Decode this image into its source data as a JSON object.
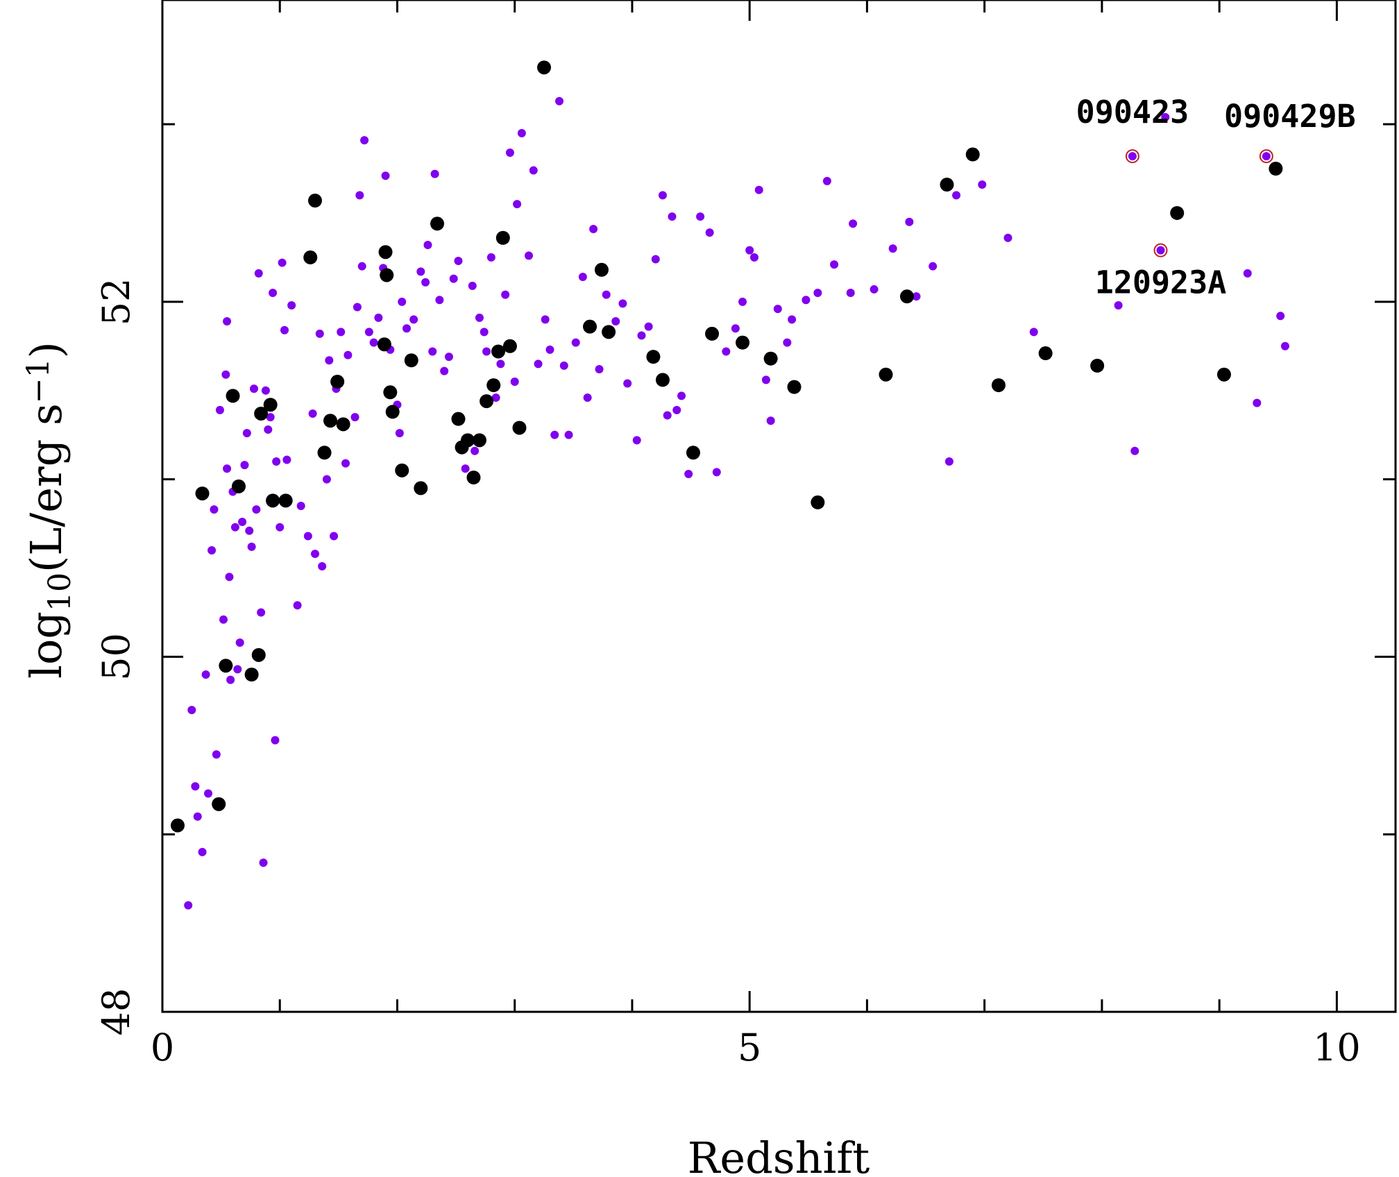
{
  "chart_data": {
    "type": "scatter",
    "title": "",
    "xlabel": "Redshift",
    "ylabel": {
      "prefix": "log",
      "sub": "10",
      "body": "(L/erg s",
      "sup": "−1",
      "close": ")"
    },
    "xlim": [
      0,
      10.5
    ],
    "ylim": [
      48,
      53.7
    ],
    "x_ticks": [
      0,
      5,
      10
    ],
    "y_ticks": [
      48,
      50,
      52
    ],
    "x_minor_step": 1,
    "y_minor_step": 1,
    "grid": false,
    "colors": {
      "purple": "#8000ee",
      "black": "#000000",
      "ring": "#c0202a"
    },
    "series": [
      {
        "marker": "small-dot",
        "color": "#8000ee",
        "points": [
          [
            0.22,
            48.6
          ],
          [
            0.25,
            49.7
          ],
          [
            0.28,
            49.27
          ],
          [
            0.3,
            49.1
          ],
          [
            0.34,
            48.9
          ],
          [
            0.37,
            49.9
          ],
          [
            0.39,
            49.23
          ],
          [
            0.42,
            50.6
          ],
          [
            0.44,
            50.83
          ],
          [
            0.46,
            49.45
          ],
          [
            0.49,
            51.39
          ],
          [
            0.52,
            50.21
          ],
          [
            0.54,
            51.59
          ],
          [
            0.55,
            51.06
          ],
          [
            0.55,
            51.89
          ],
          [
            0.57,
            50.45
          ],
          [
            0.58,
            49.87
          ],
          [
            0.6,
            50.93
          ],
          [
            0.62,
            50.73
          ],
          [
            0.64,
            49.93
          ],
          [
            0.66,
            50.08
          ],
          [
            0.68,
            50.76
          ],
          [
            0.7,
            51.08
          ],
          [
            0.72,
            51.26
          ],
          [
            0.74,
            50.71
          ],
          [
            0.76,
            50.62
          ],
          [
            0.78,
            51.51
          ],
          [
            0.8,
            50.83
          ],
          [
            0.82,
            52.16
          ],
          [
            0.84,
            50.25
          ],
          [
            0.86,
            48.84
          ],
          [
            0.88,
            51.5
          ],
          [
            0.9,
            51.28
          ],
          [
            0.92,
            51.35
          ],
          [
            0.94,
            52.05
          ],
          [
            0.96,
            49.53
          ],
          [
            0.97,
            51.1
          ],
          [
            1.0,
            50.73
          ],
          [
            1.02,
            52.22
          ],
          [
            1.04,
            51.84
          ],
          [
            1.06,
            51.11
          ],
          [
            1.1,
            51.98
          ],
          [
            1.15,
            50.29
          ],
          [
            1.18,
            50.85
          ],
          [
            1.24,
            50.68
          ],
          [
            1.28,
            51.37
          ],
          [
            1.3,
            50.58
          ],
          [
            1.34,
            51.82
          ],
          [
            1.36,
            50.51
          ],
          [
            1.4,
            51.0
          ],
          [
            1.42,
            51.67
          ],
          [
            1.46,
            50.68
          ],
          [
            1.48,
            51.51
          ],
          [
            1.52,
            51.83
          ],
          [
            1.56,
            51.09
          ],
          [
            1.58,
            51.7
          ],
          [
            1.64,
            51.35
          ],
          [
            1.66,
            51.97
          ],
          [
            1.68,
            52.6
          ],
          [
            1.7,
            52.2
          ],
          [
            1.72,
            52.91
          ],
          [
            1.76,
            51.83
          ],
          [
            1.8,
            51.77
          ],
          [
            1.84,
            51.91
          ],
          [
            1.88,
            52.19
          ],
          [
            1.9,
            52.71
          ],
          [
            1.94,
            51.73
          ],
          [
            2.0,
            51.42
          ],
          [
            2.02,
            51.26
          ],
          [
            2.04,
            52.0
          ],
          [
            2.08,
            51.85
          ],
          [
            2.14,
            51.9
          ],
          [
            2.2,
            52.17
          ],
          [
            2.24,
            52.11
          ],
          [
            2.26,
            52.32
          ],
          [
            2.3,
            51.72
          ],
          [
            2.32,
            52.72
          ],
          [
            2.36,
            52.01
          ],
          [
            2.4,
            51.61
          ],
          [
            2.44,
            51.69
          ],
          [
            2.48,
            52.13
          ],
          [
            2.52,
            52.23
          ],
          [
            2.58,
            51.06
          ],
          [
            2.64,
            52.09
          ],
          [
            2.66,
            51.16
          ],
          [
            2.7,
            51.91
          ],
          [
            2.74,
            51.83
          ],
          [
            2.76,
            51.72
          ],
          [
            2.8,
            52.25
          ],
          [
            2.84,
            51.46
          ],
          [
            2.88,
            51.65
          ],
          [
            2.92,
            52.04
          ],
          [
            2.96,
            52.84
          ],
          [
            3.0,
            51.55
          ],
          [
            3.02,
            52.55
          ],
          [
            3.06,
            52.95
          ],
          [
            3.12,
            52.26
          ],
          [
            3.16,
            52.74
          ],
          [
            3.2,
            51.65
          ],
          [
            3.26,
            51.9
          ],
          [
            3.3,
            51.73
          ],
          [
            3.34,
            51.25
          ],
          [
            3.38,
            53.13
          ],
          [
            3.42,
            51.64
          ],
          [
            3.46,
            51.25
          ],
          [
            3.52,
            51.77
          ],
          [
            3.58,
            52.14
          ],
          [
            3.62,
            51.46
          ],
          [
            3.67,
            52.41
          ],
          [
            3.72,
            51.62
          ],
          [
            3.78,
            52.04
          ],
          [
            3.86,
            51.89
          ],
          [
            3.92,
            51.99
          ],
          [
            3.96,
            51.54
          ],
          [
            4.04,
            51.22
          ],
          [
            4.08,
            51.81
          ],
          [
            4.14,
            51.86
          ],
          [
            4.2,
            52.24
          ],
          [
            4.26,
            52.6
          ],
          [
            4.3,
            51.36
          ],
          [
            4.34,
            52.48
          ],
          [
            4.38,
            51.39
          ],
          [
            4.42,
            51.47
          ],
          [
            4.48,
            51.03
          ],
          [
            4.58,
            52.48
          ],
          [
            4.66,
            52.39
          ],
          [
            4.72,
            51.04
          ],
          [
            4.8,
            51.72
          ],
          [
            4.88,
            51.85
          ],
          [
            4.94,
            52.0
          ],
          [
            5.0,
            52.29
          ],
          [
            5.04,
            52.25
          ],
          [
            5.08,
            52.63
          ],
          [
            5.14,
            51.56
          ],
          [
            5.18,
            51.33
          ],
          [
            5.24,
            51.96
          ],
          [
            5.32,
            51.77
          ],
          [
            5.36,
            51.9
          ],
          [
            5.48,
            52.01
          ],
          [
            5.58,
            52.05
          ],
          [
            5.66,
            52.68
          ],
          [
            5.72,
            52.21
          ],
          [
            5.86,
            52.05
          ],
          [
            5.88,
            52.44
          ],
          [
            6.06,
            52.07
          ],
          [
            6.22,
            52.3
          ],
          [
            6.36,
            52.45
          ],
          [
            6.42,
            52.03
          ],
          [
            6.56,
            52.2
          ],
          [
            6.7,
            51.1
          ],
          [
            6.76,
            52.6
          ],
          [
            6.98,
            52.66
          ],
          [
            7.2,
            52.36
          ],
          [
            7.42,
            51.83
          ],
          [
            8.14,
            51.98
          ],
          [
            8.28,
            51.16
          ],
          [
            8.54,
            53.04
          ],
          [
            9.24,
            52.16
          ],
          [
            9.32,
            51.43
          ],
          [
            9.52,
            51.92
          ],
          [
            9.56,
            51.75
          ]
        ]
      },
      {
        "marker": "large-dot",
        "color": "#000000",
        "points": [
          [
            0.13,
            49.05
          ],
          [
            0.34,
            50.92
          ],
          [
            0.48,
            49.17
          ],
          [
            0.54,
            49.95
          ],
          [
            0.6,
            51.47
          ],
          [
            0.65,
            50.96
          ],
          [
            0.76,
            49.9
          ],
          [
            0.82,
            50.01
          ],
          [
            0.84,
            51.37
          ],
          [
            0.92,
            51.42
          ],
          [
            0.94,
            50.88
          ],
          [
            1.05,
            50.88
          ],
          [
            1.26,
            52.25
          ],
          [
            1.3,
            52.57
          ],
          [
            1.38,
            51.15
          ],
          [
            1.43,
            51.33
          ],
          [
            1.49,
            51.55
          ],
          [
            1.54,
            51.31
          ],
          [
            1.89,
            51.76
          ],
          [
            1.9,
            52.28
          ],
          [
            1.91,
            52.15
          ],
          [
            1.94,
            51.49
          ],
          [
            1.96,
            51.38
          ],
          [
            2.04,
            51.05
          ],
          [
            2.12,
            51.67
          ],
          [
            2.2,
            50.95
          ],
          [
            2.34,
            52.44
          ],
          [
            2.52,
            51.34
          ],
          [
            2.55,
            51.18
          ],
          [
            2.6,
            51.22
          ],
          [
            2.65,
            51.01
          ],
          [
            2.7,
            51.22
          ],
          [
            2.76,
            51.44
          ],
          [
            2.82,
            51.53
          ],
          [
            2.86,
            51.72
          ],
          [
            2.9,
            52.36
          ],
          [
            2.96,
            51.75
          ],
          [
            3.04,
            51.29
          ],
          [
            3.25,
            53.32
          ],
          [
            3.64,
            51.86
          ],
          [
            3.74,
            52.18
          ],
          [
            3.8,
            51.83
          ],
          [
            4.18,
            51.69
          ],
          [
            4.26,
            51.56
          ],
          [
            4.52,
            51.15
          ],
          [
            4.68,
            51.82
          ],
          [
            4.94,
            51.77
          ],
          [
            5.18,
            51.68
          ],
          [
            5.38,
            51.52
          ],
          [
            5.58,
            50.87
          ],
          [
            6.16,
            51.59
          ],
          [
            6.34,
            52.03
          ],
          [
            6.68,
            52.66
          ],
          [
            6.9,
            52.83
          ],
          [
            7.12,
            51.53
          ],
          [
            7.52,
            51.71
          ],
          [
            7.96,
            51.64
          ],
          [
            8.64,
            52.5
          ],
          [
            9.04,
            51.59
          ],
          [
            9.48,
            52.75
          ]
        ]
      },
      {
        "marker": "ringed-dot",
        "color": "#8000ee",
        "points": [
          [
            8.26,
            52.82
          ],
          [
            8.5,
            52.29
          ],
          [
            9.4,
            52.82
          ]
        ]
      }
    ],
    "annotations": [
      {
        "text": "090423",
        "x": 8.26,
        "y": 52.82
      },
      {
        "text": "090429B",
        "x": 9.4,
        "y": 52.82
      },
      {
        "text": "120923A",
        "x": 8.5,
        "y": 52.29
      }
    ]
  }
}
